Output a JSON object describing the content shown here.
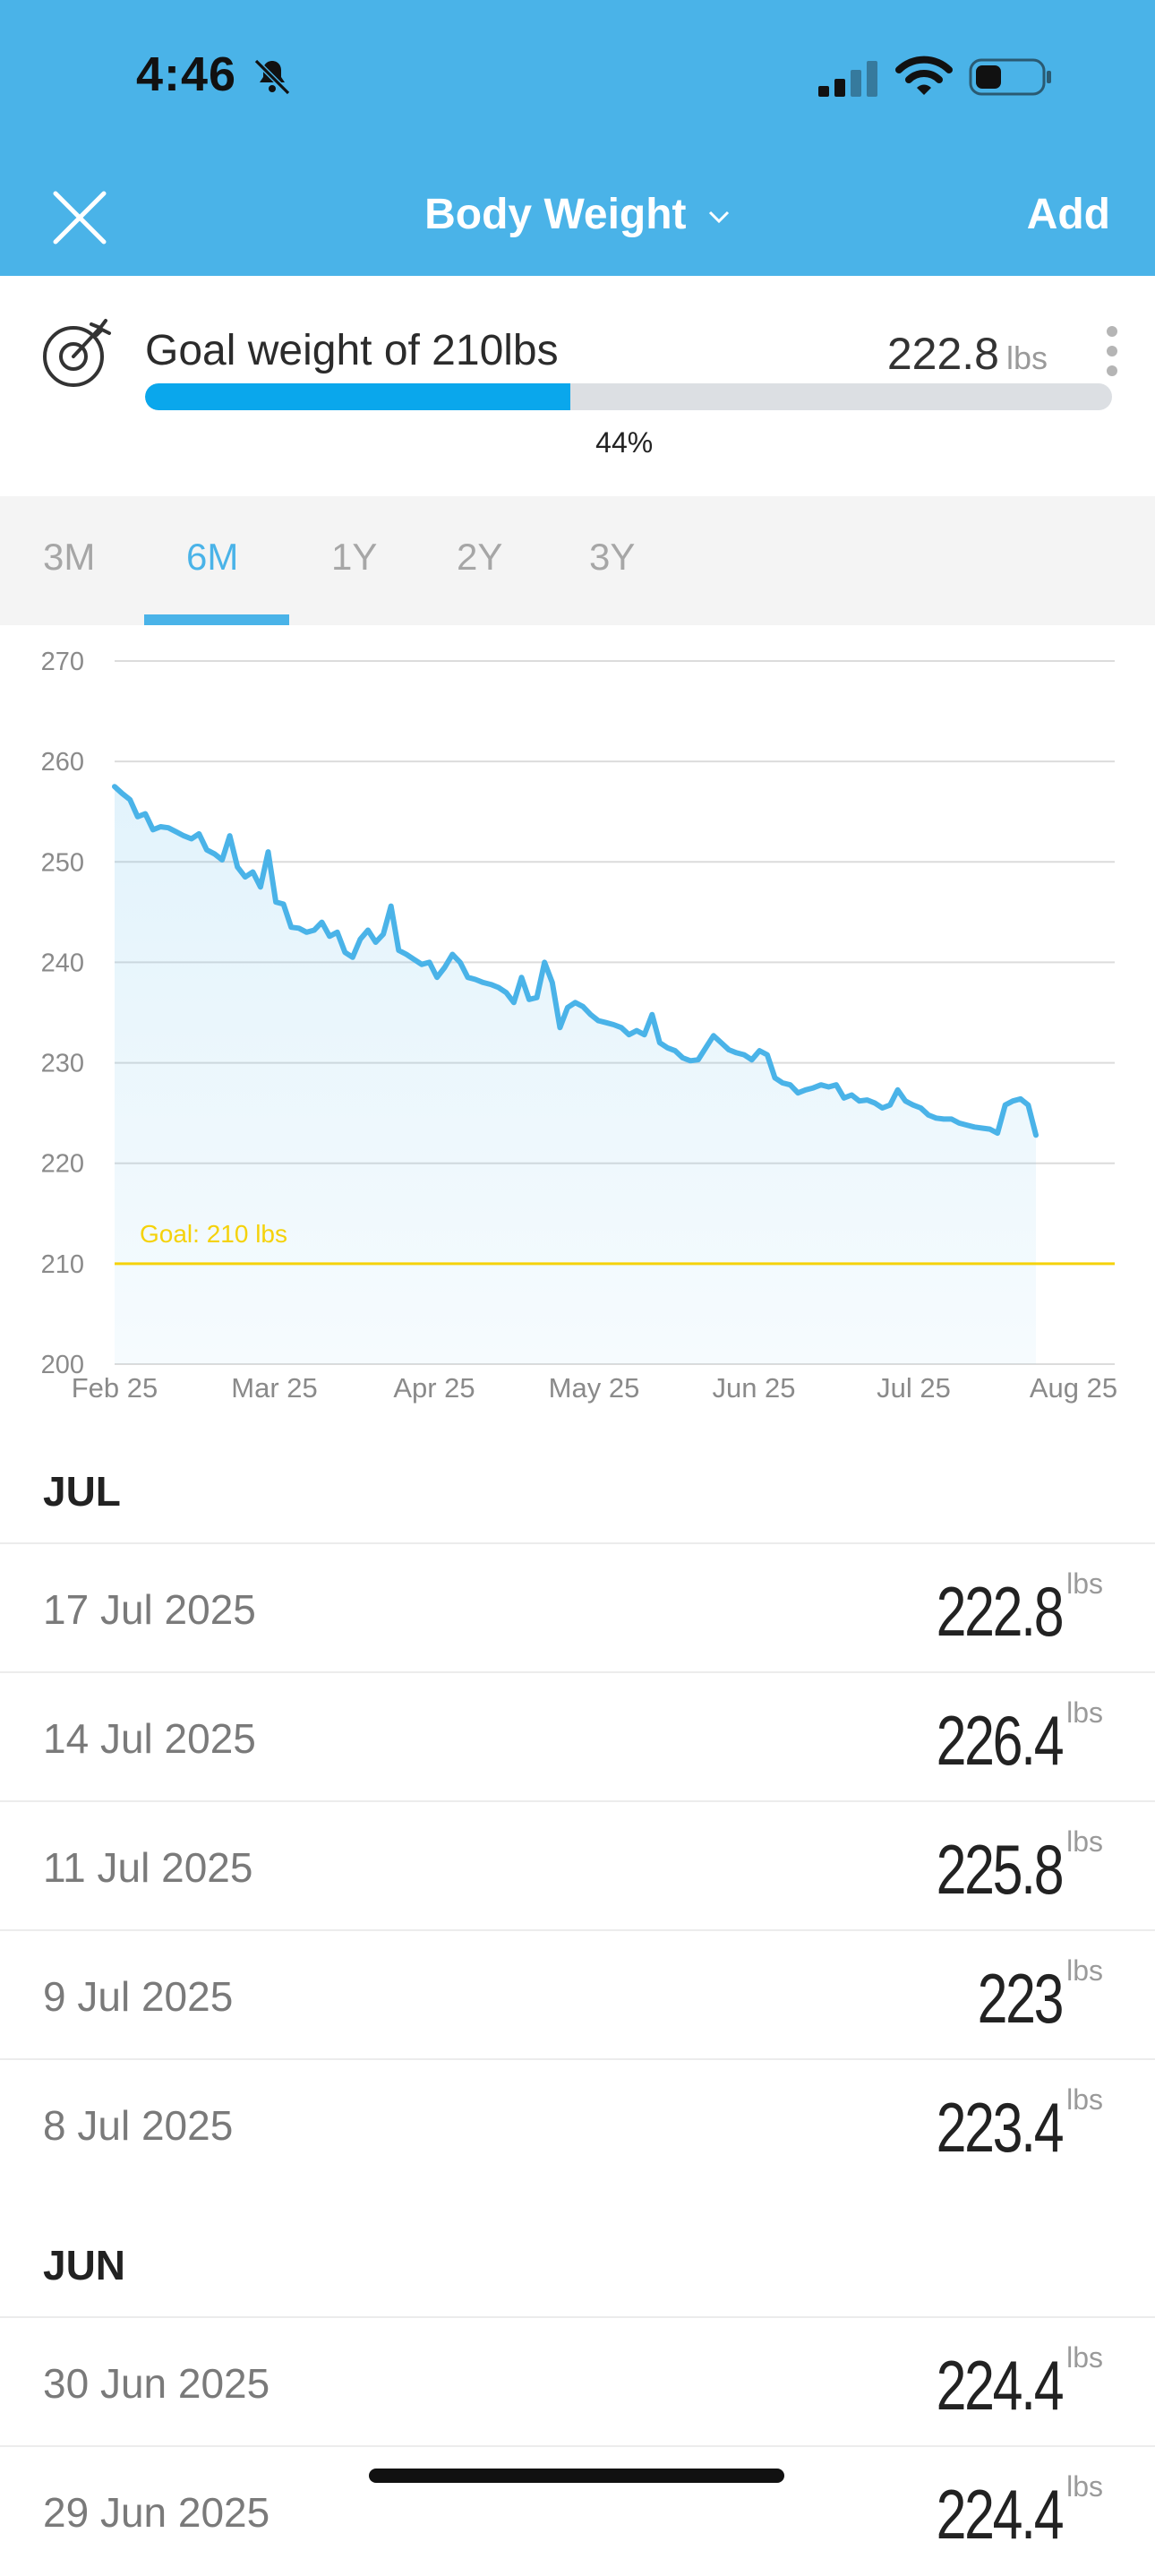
{
  "status_bar": {
    "time": "4:46"
  },
  "nav": {
    "title": "Body Weight",
    "add_label": "Add"
  },
  "goal": {
    "title": "Goal weight of 210lbs",
    "current_value": "222.8",
    "current_unit": "lbs",
    "progress_percent": 44,
    "progress_label": "44%"
  },
  "tabs": [
    {
      "label": "3M",
      "active": false
    },
    {
      "label": "6M",
      "active": true
    },
    {
      "label": "1Y",
      "active": false
    },
    {
      "label": "2Y",
      "active": false
    },
    {
      "label": "3Y",
      "active": false
    }
  ],
  "chart_data": {
    "type": "area",
    "yticks": [
      270,
      260,
      250,
      240,
      230,
      220,
      210,
      200
    ],
    "ylim": [
      200,
      270
    ],
    "xticks": [
      "Feb 25",
      "Mar 25",
      "Apr 25",
      "May 25",
      "Jun 25",
      "Jul 25",
      "Aug 25"
    ],
    "grid": true,
    "goal_line": {
      "value": 210,
      "label": "Goal: 210 lbs",
      "color": "#f5d20a"
    },
    "line_color": "#4ab3e8",
    "series": [
      {
        "values": [
          257.5,
          256.8,
          256.2,
          254.5,
          254.8,
          253.2,
          253.5,
          253.4,
          253.0,
          252.6,
          252.3,
          252.8,
          251.2,
          250.8,
          250.2,
          252.6,
          249.5,
          248.5,
          249.0,
          247.5,
          251.0,
          246.0,
          245.8,
          243.5,
          243.4,
          243.0,
          243.2,
          244.0,
          242.6,
          243.0,
          241.0,
          240.5,
          242.3,
          243.2,
          242.0,
          242.8,
          245.6,
          241.2,
          240.8,
          240.3,
          239.8,
          240.0,
          238.5,
          239.5,
          240.8,
          240.0,
          238.5,
          238.3,
          238.0,
          237.8,
          237.5,
          237.0,
          236.0,
          238.5,
          236.3,
          236.5,
          240.0,
          238.0,
          233.5,
          235.5,
          236.0,
          235.6,
          234.8,
          234.2,
          234.0,
          233.8,
          233.5,
          232.8,
          233.2,
          232.8,
          234.8,
          232.0,
          231.5,
          231.2,
          230.5,
          230.2,
          230.3,
          231.5,
          232.7,
          232.0,
          231.3,
          231.0,
          230.8,
          230.3,
          231.2,
          230.8,
          228.5,
          228.0,
          227.8,
          227.0,
          227.3,
          227.5,
          227.8,
          227.6,
          227.8,
          226.5,
          226.8,
          226.2,
          226.3,
          226.0,
          225.5,
          225.8,
          227.3,
          226.2,
          225.8,
          225.5,
          224.8,
          224.5,
          224.4,
          224.4,
          224.0,
          223.8,
          223.6,
          223.5,
          223.4,
          223.0,
          225.8,
          226.2,
          226.4,
          225.8,
          222.8
        ]
      }
    ]
  },
  "log": [
    {
      "month": "JUL",
      "entries": [
        {
          "date": "17 Jul 2025",
          "value": "222.8",
          "unit": "lbs"
        },
        {
          "date": "14 Jul 2025",
          "value": "226.4",
          "unit": "lbs"
        },
        {
          "date": "11 Jul 2025",
          "value": "225.8",
          "unit": "lbs"
        },
        {
          "date": "9 Jul 2025",
          "value": "223",
          "unit": "lbs"
        },
        {
          "date": "8 Jul 2025",
          "value": "223.4",
          "unit": "lbs"
        }
      ]
    },
    {
      "month": "JUN",
      "entries": [
        {
          "date": "30 Jun 2025",
          "value": "224.4",
          "unit": "lbs"
        },
        {
          "date": "29 Jun 2025",
          "value": "224.4",
          "unit": "lbs"
        }
      ]
    }
  ]
}
